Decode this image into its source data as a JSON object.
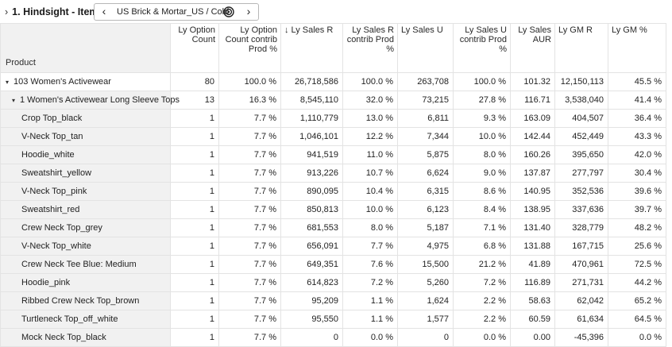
{
  "header": {
    "expand_glyph": "›",
    "title": "1. Hindsight - Item",
    "pager": {
      "prev_glyph": "‹",
      "label": "US Brick & Mortar_US / Cold",
      "next_glyph": "›",
      "target_icon": "target-icon"
    }
  },
  "table": {
    "row_header_label": "Product",
    "sort_glyph": "↓",
    "columns": [
      {
        "label": "Ly Option Count",
        "align": "right"
      },
      {
        "label": "Ly Option Count contrib Prod %",
        "align": "right"
      },
      {
        "label": "Ly Sales R",
        "align": "left",
        "sorted": "desc"
      },
      {
        "label": "Ly Sales R contrib Prod %",
        "align": "right"
      },
      {
        "label": "Ly Sales U",
        "align": "left"
      },
      {
        "label": "Ly Sales U contrib Prod %",
        "align": "right"
      },
      {
        "label": "Ly Sales AUR",
        "align": "right"
      },
      {
        "label": "Ly GM R",
        "align": "left"
      },
      {
        "label": "Ly GM %",
        "align": "left"
      }
    ],
    "rows": [
      {
        "name": "103 Women's Activewear",
        "level": 0,
        "toggle": "▾",
        "values": [
          "80",
          "100.0 %",
          "26,718,586",
          "100.0 %",
          "263,708",
          "100.0 %",
          "101.32",
          "12,150,113",
          "45.5 %"
        ]
      },
      {
        "name": "1 Women's Activewear Long Sleeve Tops",
        "level": 1,
        "toggle": "▾",
        "values": [
          "13",
          "16.3 %",
          "8,545,110",
          "32.0 %",
          "73,215",
          "27.8 %",
          "116.71",
          "3,538,040",
          "41.4 %"
        ]
      },
      {
        "name": "Crop Top_black",
        "level": 2,
        "values": [
          "1",
          "7.7 %",
          "1,110,779",
          "13.0 %",
          "6,811",
          "9.3 %",
          "163.09",
          "404,507",
          "36.4 %"
        ]
      },
      {
        "name": "V-Neck Top_tan",
        "level": 2,
        "values": [
          "1",
          "7.7 %",
          "1,046,101",
          "12.2 %",
          "7,344",
          "10.0 %",
          "142.44",
          "452,449",
          "43.3 %"
        ]
      },
      {
        "name": "Hoodie_white",
        "level": 2,
        "values": [
          "1",
          "7.7 %",
          "941,519",
          "11.0 %",
          "5,875",
          "8.0 %",
          "160.26",
          "395,650",
          "42.0 %"
        ]
      },
      {
        "name": "Sweatshirt_yellow",
        "level": 2,
        "values": [
          "1",
          "7.7 %",
          "913,226",
          "10.7 %",
          "6,624",
          "9.0 %",
          "137.87",
          "277,797",
          "30.4 %"
        ]
      },
      {
        "name": "V-Neck Top_pink",
        "level": 2,
        "values": [
          "1",
          "7.7 %",
          "890,095",
          "10.4 %",
          "6,315",
          "8.6 %",
          "140.95",
          "352,536",
          "39.6 %"
        ]
      },
      {
        "name": "Sweatshirt_red",
        "level": 2,
        "values": [
          "1",
          "7.7 %",
          "850,813",
          "10.0 %",
          "6,123",
          "8.4 %",
          "138.95",
          "337,636",
          "39.7 %"
        ]
      },
      {
        "name": "Crew Neck Top_grey",
        "level": 2,
        "values": [
          "1",
          "7.7 %",
          "681,553",
          "8.0 %",
          "5,187",
          "7.1 %",
          "131.40",
          "328,779",
          "48.2 %"
        ]
      },
      {
        "name": "V-Neck Top_white",
        "level": 2,
        "values": [
          "1",
          "7.7 %",
          "656,091",
          "7.7 %",
          "4,975",
          "6.8 %",
          "131.88",
          "167,715",
          "25.6 %"
        ]
      },
      {
        "name": "Crew Neck Tee Blue: Medium",
        "level": 2,
        "values": [
          "1",
          "7.7 %",
          "649,351",
          "7.6 %",
          "15,500",
          "21.2 %",
          "41.89",
          "470,961",
          "72.5 %"
        ]
      },
      {
        "name": "Hoodie_pink",
        "level": 2,
        "values": [
          "1",
          "7.7 %",
          "614,823",
          "7.2 %",
          "5,260",
          "7.2 %",
          "116.89",
          "271,731",
          "44.2 %"
        ]
      },
      {
        "name": "Ribbed Crew Neck Top_brown",
        "level": 2,
        "values": [
          "1",
          "7.7 %",
          "95,209",
          "1.1 %",
          "1,624",
          "2.2 %",
          "58.63",
          "62,042",
          "65.2 %"
        ]
      },
      {
        "name": "Turtleneck Top_off_white",
        "level": 2,
        "values": [
          "1",
          "7.7 %",
          "95,550",
          "1.1 %",
          "1,577",
          "2.2 %",
          "60.59",
          "61,634",
          "64.5 %"
        ]
      },
      {
        "name": "Mock Neck Top_black",
        "level": 2,
        "values": [
          "1",
          "7.7 %",
          "0",
          "0.0 %",
          "0",
          "0.0 %",
          "0.00",
          "-45,396",
          "0.0 %"
        ]
      }
    ]
  }
}
